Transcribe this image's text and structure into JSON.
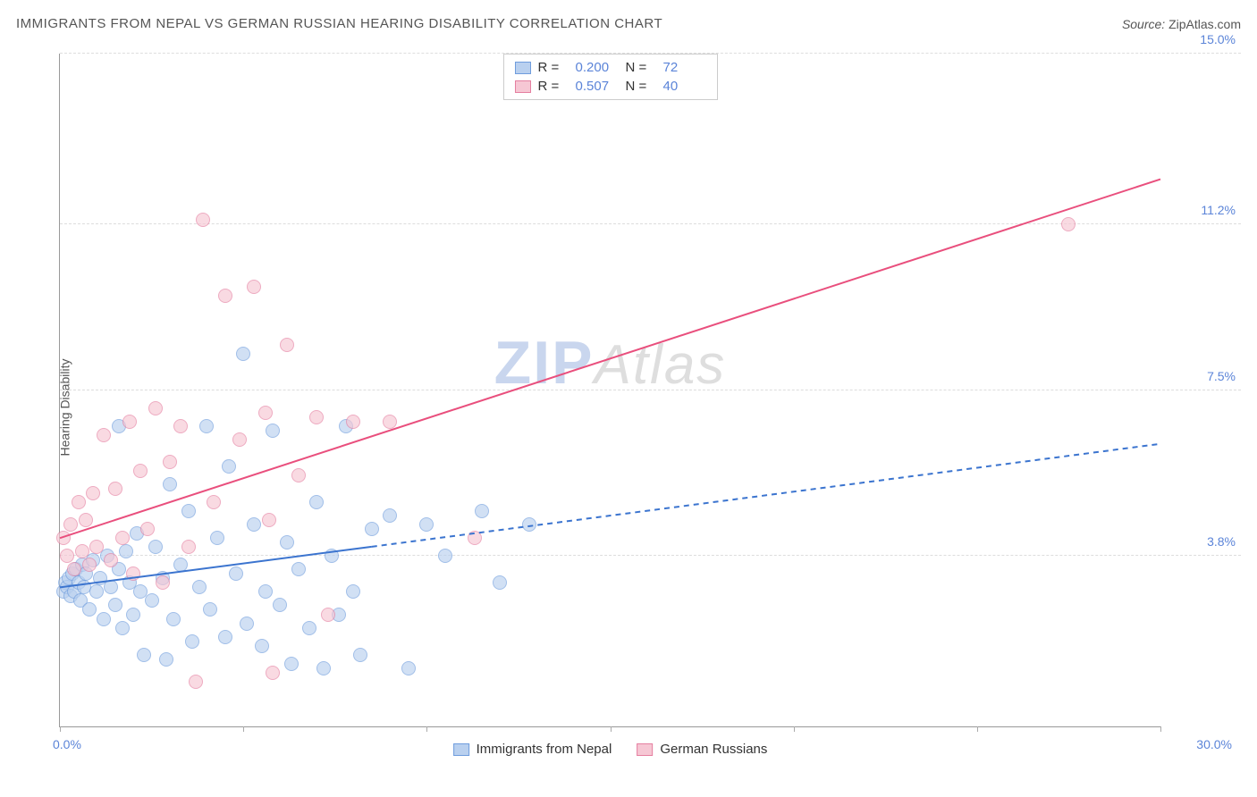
{
  "title": "IMMIGRANTS FROM NEPAL VS GERMAN RUSSIAN HEARING DISABILITY CORRELATION CHART",
  "source_prefix": "Source: ",
  "source_name": "ZipAtlas.com",
  "ylabel": "Hearing Disability",
  "watermark_bold": "ZIP",
  "watermark_rest": "Atlas",
  "chart": {
    "type": "scatter",
    "xlim": [
      0,
      30
    ],
    "ylim": [
      0,
      15
    ],
    "x_min_label": "0.0%",
    "x_max_label": "30.0%",
    "x_tick_positions": [
      0,
      5,
      10,
      15,
      20,
      25,
      30
    ],
    "y_gridlines": [
      3.8,
      7.5,
      11.2,
      15.0
    ],
    "y_tick_labels": [
      "3.8%",
      "7.5%",
      "11.2%",
      "15.0%"
    ],
    "background_color": "#ffffff",
    "grid_color": "#dddddd",
    "axis_color": "#999999",
    "label_color": "#5b84d8",
    "point_radius": 8,
    "point_opacity": 0.65,
    "series": [
      {
        "key": "nepal",
        "name": "Immigrants from Nepal",
        "color_fill": "#b9d0ef",
        "color_stroke": "#6f9ddd",
        "r": "0.200",
        "n": "72",
        "trend": {
          "x1": 0,
          "y1": 3.1,
          "x2": 30,
          "y2": 6.3,
          "solid_until_x": 8.5,
          "width": 2,
          "dash": "6,5",
          "color": "#3b74cf"
        },
        "points": [
          [
            0.1,
            3.0
          ],
          [
            0.15,
            3.2
          ],
          [
            0.2,
            3.1
          ],
          [
            0.25,
            3.3
          ],
          [
            0.3,
            2.9
          ],
          [
            0.35,
            3.4
          ],
          [
            0.4,
            3.0
          ],
          [
            0.45,
            3.5
          ],
          [
            0.5,
            3.2
          ],
          [
            0.55,
            2.8
          ],
          [
            0.6,
            3.6
          ],
          [
            0.65,
            3.1
          ],
          [
            0.7,
            3.4
          ],
          [
            0.8,
            2.6
          ],
          [
            0.9,
            3.7
          ],
          [
            1.0,
            3.0
          ],
          [
            1.1,
            3.3
          ],
          [
            1.2,
            2.4
          ],
          [
            1.3,
            3.8
          ],
          [
            1.4,
            3.1
          ],
          [
            1.5,
            2.7
          ],
          [
            1.6,
            3.5
          ],
          [
            1.7,
            2.2
          ],
          [
            1.8,
            3.9
          ],
          [
            1.9,
            3.2
          ],
          [
            2.0,
            2.5
          ],
          [
            2.1,
            4.3
          ],
          [
            2.2,
            3.0
          ],
          [
            2.3,
            1.6
          ],
          [
            2.5,
            2.8
          ],
          [
            2.6,
            4.0
          ],
          [
            2.8,
            3.3
          ],
          [
            2.9,
            1.5
          ],
          [
            3.0,
            5.4
          ],
          [
            3.1,
            2.4
          ],
          [
            3.3,
            3.6
          ],
          [
            3.5,
            4.8
          ],
          [
            3.6,
            1.9
          ],
          [
            3.8,
            3.1
          ],
          [
            4.0,
            6.7
          ],
          [
            4.1,
            2.6
          ],
          [
            4.3,
            4.2
          ],
          [
            4.5,
            2.0
          ],
          [
            4.6,
            5.8
          ],
          [
            4.8,
            3.4
          ],
          [
            5.0,
            8.3
          ],
          [
            5.1,
            2.3
          ],
          [
            5.3,
            4.5
          ],
          [
            5.5,
            1.8
          ],
          [
            5.6,
            3.0
          ],
          [
            5.8,
            6.6
          ],
          [
            6.0,
            2.7
          ],
          [
            6.2,
            4.1
          ],
          [
            6.3,
            1.4
          ],
          [
            6.5,
            3.5
          ],
          [
            6.8,
            2.2
          ],
          [
            7.0,
            5.0
          ],
          [
            7.2,
            1.3
          ],
          [
            7.4,
            3.8
          ],
          [
            7.6,
            2.5
          ],
          [
            7.8,
            6.7
          ],
          [
            8.0,
            3.0
          ],
          [
            8.2,
            1.6
          ],
          [
            8.5,
            4.4
          ],
          [
            9.0,
            4.7
          ],
          [
            9.5,
            1.3
          ],
          [
            10.0,
            4.5
          ],
          [
            10.5,
            3.8
          ],
          [
            11.5,
            4.8
          ],
          [
            12.0,
            3.2
          ],
          [
            12.8,
            4.5
          ],
          [
            1.6,
            6.7
          ]
        ]
      },
      {
        "key": "german_russian",
        "name": "German Russians",
        "color_fill": "#f6c7d4",
        "color_stroke": "#e57fa0",
        "r": "0.507",
        "n": "40",
        "trend": {
          "x1": 0,
          "y1": 4.2,
          "x2": 30,
          "y2": 12.2,
          "solid_until_x": 30,
          "width": 2,
          "dash": null,
          "color": "#e94f7d"
        },
        "points": [
          [
            0.1,
            4.2
          ],
          [
            0.2,
            3.8
          ],
          [
            0.3,
            4.5
          ],
          [
            0.4,
            3.5
          ],
          [
            0.5,
            5.0
          ],
          [
            0.6,
            3.9
          ],
          [
            0.7,
            4.6
          ],
          [
            0.8,
            3.6
          ],
          [
            0.9,
            5.2
          ],
          [
            1.0,
            4.0
          ],
          [
            1.2,
            6.5
          ],
          [
            1.4,
            3.7
          ],
          [
            1.5,
            5.3
          ],
          [
            1.7,
            4.2
          ],
          [
            1.9,
            6.8
          ],
          [
            2.0,
            3.4
          ],
          [
            2.2,
            5.7
          ],
          [
            2.4,
            4.4
          ],
          [
            2.6,
            7.1
          ],
          [
            2.8,
            3.2
          ],
          [
            3.0,
            5.9
          ],
          [
            3.3,
            6.7
          ],
          [
            3.5,
            4.0
          ],
          [
            3.7,
            1.0
          ],
          [
            3.9,
            11.3
          ],
          [
            4.2,
            5.0
          ],
          [
            4.5,
            9.6
          ],
          [
            4.9,
            6.4
          ],
          [
            5.3,
            9.8
          ],
          [
            5.6,
            7.0
          ],
          [
            5.8,
            1.2
          ],
          [
            5.7,
            4.6
          ],
          [
            6.2,
            8.5
          ],
          [
            6.5,
            5.6
          ],
          [
            7.0,
            6.9
          ],
          [
            7.3,
            2.5
          ],
          [
            8.0,
            6.8
          ],
          [
            9.0,
            6.8
          ],
          [
            11.3,
            4.2
          ],
          [
            27.5,
            11.2
          ]
        ]
      }
    ]
  },
  "legend_top_labels": {
    "r": "R =",
    "n": "N ="
  }
}
